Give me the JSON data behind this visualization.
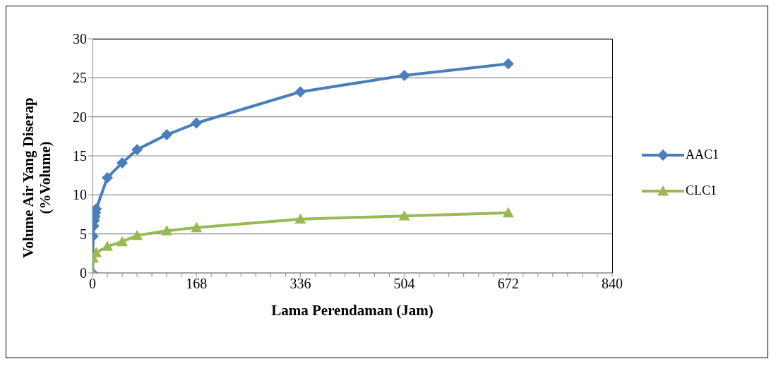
{
  "chart_data": {
    "type": "line",
    "xlabel": "Lama Perendaman (Jam)",
    "ylabel": "Volume Air Yang Diserap (%Volume)",
    "xlim": [
      0,
      840
    ],
    "xticks": [
      0,
      {
        "value": 24,
        "label": null
      },
      {
        "value": 48,
        "label": null
      },
      {
        "value": 72,
        "label": null
      },
      {
        "value": 96,
        "label": null
      },
      {
        "value": 120,
        "label": null
      },
      {
        "value": 144,
        "label": null
      },
      168,
      {
        "value": 192,
        "label": null
      },
      {
        "value": 216,
        "label": null
      },
      {
        "value": 240,
        "label": null
      },
      {
        "value": 264,
        "label": null
      },
      {
        "value": 288,
        "label": null
      },
      {
        "value": 312,
        "label": null
      },
      336,
      {
        "value": 360,
        "label": null
      },
      {
        "value": 384,
        "label": null
      },
      {
        "value": 408,
        "label": null
      },
      {
        "value": 432,
        "label": null
      },
      {
        "value": 456,
        "label": null
      },
      {
        "value": 480,
        "label": null
      },
      504,
      {
        "value": 528,
        "label": null
      },
      {
        "value": 552,
        "label": null
      },
      {
        "value": 576,
        "label": null
      },
      {
        "value": 600,
        "label": null
      },
      {
        "value": 624,
        "label": null
      },
      {
        "value": 648,
        "label": null
      },
      672,
      {
        "value": 696,
        "label": null
      },
      {
        "value": 720,
        "label": null
      },
      {
        "value": 744,
        "label": null
      },
      {
        "value": 768,
        "label": null
      },
      {
        "value": 792,
        "label": null
      },
      {
        "value": 816,
        "label": null
      },
      840
    ],
    "ylim": [
      0,
      30
    ],
    "yticks": [
      0,
      5,
      10,
      15,
      20,
      25,
      30
    ],
    "grid": "y",
    "legend": "right",
    "line_style": "solid",
    "series": [
      {
        "name": "AAC1",
        "color": "#4a7ebb",
        "marker": "diamond",
        "x": [
          0,
          1,
          2,
          3,
          4,
          5,
          6,
          24,
          48,
          72,
          120,
          168,
          336,
          504,
          672
        ],
        "values": [
          0,
          4.7,
          6.0,
          6.7,
          7.2,
          7.7,
          8.2,
          12.2,
          14.1,
          15.8,
          17.7,
          19.2,
          23.2,
          25.3,
          26.8
        ]
      },
      {
        "name": "CLC1",
        "color": "#98b954",
        "marker": "triangle",
        "x": [
          0,
          1,
          6,
          24,
          48,
          72,
          120,
          168,
          336,
          504,
          672
        ],
        "values": [
          0,
          1.9,
          2.6,
          3.4,
          4.0,
          4.8,
          5.4,
          5.8,
          6.9,
          7.3,
          7.7
        ]
      }
    ]
  }
}
